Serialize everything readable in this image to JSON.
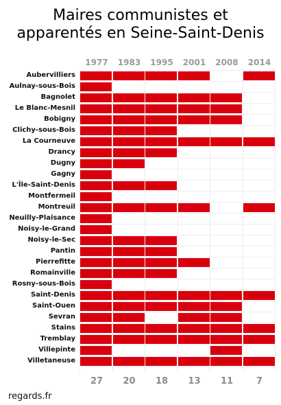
{
  "title_lines": [
    "Maires communistes et",
    "apparentés en Seine-Saint-Denis"
  ],
  "source": "regards.fr",
  "colors": {
    "filled": "#d9000d",
    "gridline": "#ededed",
    "header_text": "#9a9a9a"
  },
  "chart_data": {
    "type": "heatmap",
    "years": [
      "1977",
      "1983",
      "1995",
      "2001",
      "2008",
      "2014"
    ],
    "counts": [
      "27",
      "20",
      "18",
      "13",
      "11",
      "7"
    ],
    "rows": [
      {
        "name": "Aubervilliers",
        "values": [
          1,
          1,
          1,
          1,
          0,
          1
        ]
      },
      {
        "name": "Aulnay-sous-Bois",
        "values": [
          1,
          0,
          0,
          0,
          0,
          0
        ]
      },
      {
        "name": "Bagnolet",
        "values": [
          1,
          1,
          1,
          1,
          1,
          0
        ]
      },
      {
        "name": "Le Blanc-Mesnil",
        "values": [
          1,
          1,
          1,
          1,
          1,
          0
        ]
      },
      {
        "name": "Bobigny",
        "values": [
          1,
          1,
          1,
          1,
          1,
          0
        ]
      },
      {
        "name": "Clichy-sous-Bois",
        "values": [
          1,
          1,
          1,
          0,
          0,
          0
        ]
      },
      {
        "name": "La Courneuve",
        "values": [
          1,
          1,
          1,
          1,
          1,
          1
        ]
      },
      {
        "name": "Drancy",
        "values": [
          1,
          1,
          1,
          0,
          0,
          0
        ]
      },
      {
        "name": "Dugny",
        "values": [
          1,
          1,
          0,
          0,
          0,
          0
        ]
      },
      {
        "name": "Gagny",
        "values": [
          1,
          0,
          0,
          0,
          0,
          0
        ]
      },
      {
        "name": "L'Île-Saint-Denis",
        "values": [
          1,
          1,
          1,
          0,
          0,
          0
        ]
      },
      {
        "name": "Montfermeil",
        "values": [
          1,
          0,
          0,
          0,
          0,
          0
        ]
      },
      {
        "name": "Montreuil",
        "values": [
          1,
          1,
          1,
          1,
          0,
          1
        ]
      },
      {
        "name": "Neuilly-Plaisance",
        "values": [
          1,
          0,
          0,
          0,
          0,
          0
        ]
      },
      {
        "name": "Noisy-le-Grand",
        "values": [
          1,
          0,
          0,
          0,
          0,
          0
        ]
      },
      {
        "name": "Noisy-le-Sec",
        "values": [
          1,
          1,
          1,
          0,
          0,
          0
        ]
      },
      {
        "name": "Pantin",
        "values": [
          1,
          1,
          1,
          0,
          0,
          0
        ]
      },
      {
        "name": "Pierrefitte",
        "values": [
          1,
          1,
          1,
          1,
          0,
          0
        ]
      },
      {
        "name": "Romainville",
        "values": [
          1,
          1,
          1,
          0,
          0,
          0
        ]
      },
      {
        "name": "Rosny-sous-Bois",
        "values": [
          1,
          0,
          0,
          0,
          0,
          0
        ]
      },
      {
        "name": "Saint-Denis",
        "values": [
          1,
          1,
          1,
          1,
          1,
          1
        ]
      },
      {
        "name": "Saint-Ouen",
        "values": [
          1,
          1,
          1,
          1,
          1,
          0
        ]
      },
      {
        "name": "Sevran",
        "values": [
          1,
          1,
          0,
          1,
          1,
          0
        ]
      },
      {
        "name": "Stains",
        "values": [
          1,
          1,
          1,
          1,
          1,
          1
        ]
      },
      {
        "name": "Tremblay",
        "values": [
          1,
          1,
          1,
          1,
          1,
          1
        ]
      },
      {
        "name": "Villepinte",
        "values": [
          1,
          0,
          0,
          0,
          1,
          0
        ]
      },
      {
        "name": "Villetaneuse",
        "values": [
          1,
          1,
          1,
          1,
          1,
          1
        ]
      }
    ]
  }
}
